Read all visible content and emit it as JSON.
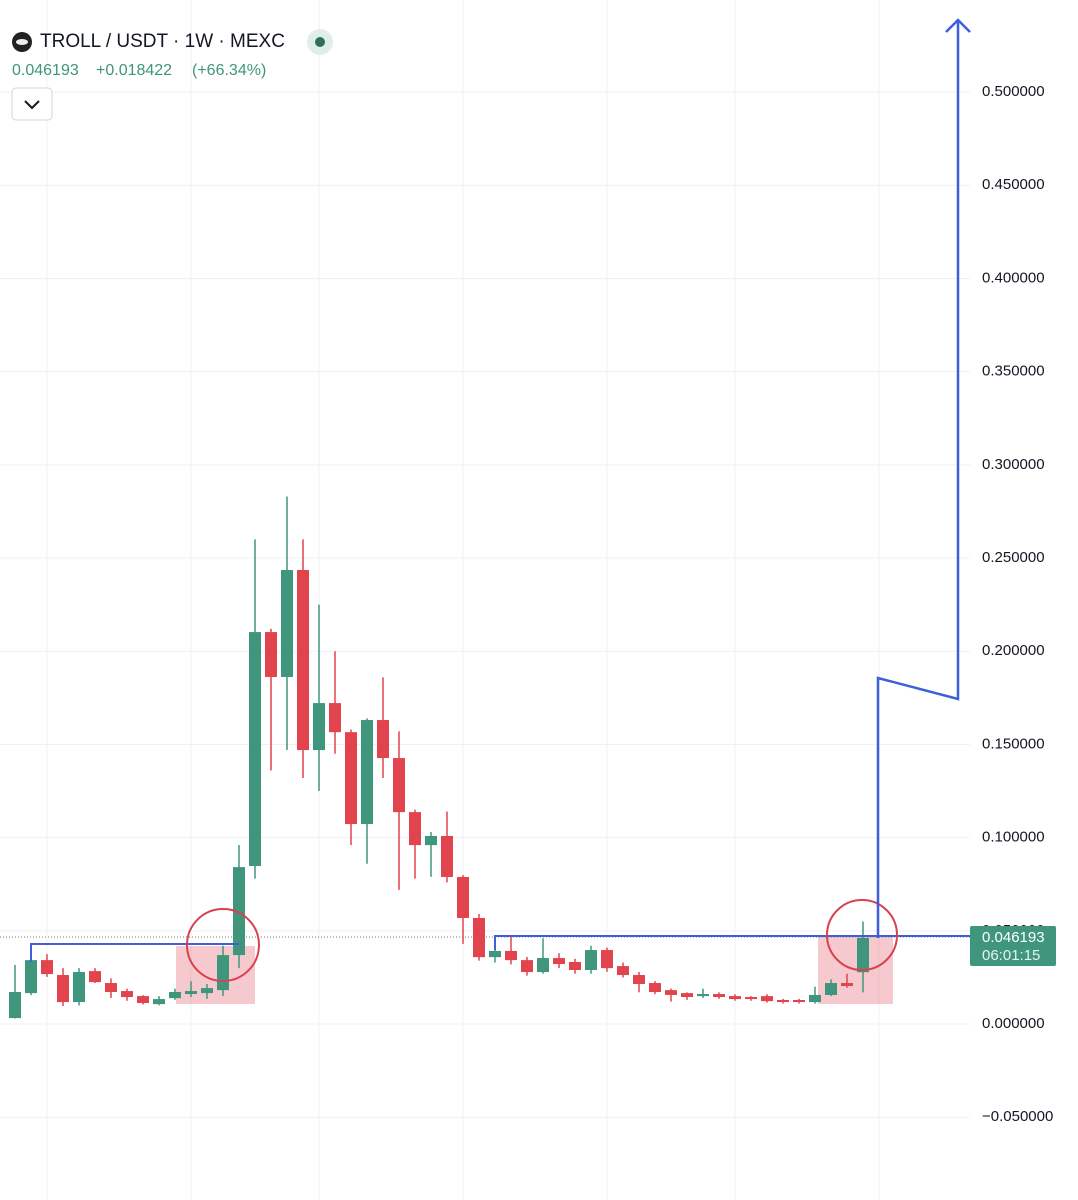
{
  "chart_data": {
    "type": "candlestick",
    "title": "TROLL / USDT · 1W · MEXC",
    "last": "0.046193",
    "change": "+0.018422",
    "change_pct": "(+66.34%)",
    "countdown": "06:01:15",
    "up_color": "#3f967d",
    "down_color": "#e2444d",
    "grid": true,
    "ylim": [
      -0.0944,
      0.5494
    ],
    "yticks": [
      {
        "value": -0.05,
        "label": "−0.050000"
      },
      {
        "value": 0,
        "label": "0.000000"
      },
      {
        "value": 0.05,
        "label": "0.050000"
      },
      {
        "value": 0.1,
        "label": "0.100000"
      },
      {
        "value": 0.15,
        "label": "0.150000"
      },
      {
        "value": 0.2,
        "label": "0.200000"
      },
      {
        "value": 0.25,
        "label": "0.250000"
      },
      {
        "value": 0.3,
        "label": "0.300000"
      },
      {
        "value": 0.35,
        "label": "0.350000"
      },
      {
        "value": 0.4,
        "label": "0.400000"
      },
      {
        "value": 0.45,
        "label": "0.450000"
      },
      {
        "value": 0.5,
        "label": "0.500000"
      }
    ],
    "open": [
      0.0032,
      0.0166,
      0.0343,
      0.0263,
      0.0118,
      0.0284,
      0.022,
      0.0177,
      0.015,
      0.0107,
      0.0139,
      0.0161,
      0.0166,
      0.0182,
      0.037,
      0.0848,
      0.2103,
      0.1862,
      0.2436,
      0.147,
      0.1722,
      0.1566,
      0.1073,
      0.1631,
      0.1427,
      0.1137,
      0.096,
      0.1009,
      0.0789,
      0.0569,
      0.0359,
      0.0392,
      0.0343,
      0.0279,
      0.0354,
      0.0333,
      0.029,
      0.0397,
      0.0311,
      0.0263,
      0.022,
      0.0182,
      0.0166,
      0.015,
      0.0161,
      0.015,
      0.0145,
      0.015,
      0.0129,
      0.0129,
      0.0118,
      0.0156,
      0.022,
      0.0278
    ],
    "high": [
      0.0317,
      0.0365,
      0.0375,
      0.03,
      0.03,
      0.03,
      0.0245,
      0.019,
      0.0155,
      0.015,
      0.019,
      0.023,
      0.0215,
      0.042,
      0.096,
      0.26,
      0.212,
      0.283,
      0.26,
      0.225,
      0.2,
      0.158,
      0.164,
      0.186,
      0.157,
      0.115,
      0.103,
      0.114,
      0.08,
      0.059,
      0.047,
      0.047,
      0.036,
      0.046,
      0.038,
      0.035,
      0.042,
      0.041,
      0.033,
      0.028,
      0.023,
      0.019,
      0.017,
      0.019,
      0.017,
      0.016,
      0.015,
      0.016,
      0.0135,
      0.0135,
      0.02,
      0.024,
      0.027,
      0.055
    ],
    "low": [
      0.003,
      0.0155,
      0.0253,
      0.0096,
      0.01,
      0.022,
      0.014,
      0.0125,
      0.0105,
      0.01,
      0.013,
      0.0145,
      0.0135,
      0.015,
      0.03,
      0.078,
      0.136,
      0.147,
      0.132,
      0.125,
      0.145,
      0.096,
      0.086,
      0.132,
      0.072,
      0.078,
      0.079,
      0.076,
      0.043,
      0.034,
      0.033,
      0.032,
      0.026,
      0.027,
      0.03,
      0.027,
      0.027,
      0.028,
      0.025,
      0.017,
      0.016,
      0.012,
      0.013,
      0.014,
      0.0135,
      0.0125,
      0.0125,
      0.0115,
      0.011,
      0.011,
      0.011,
      0.015,
      0.0195,
      0.017
    ],
    "close": [
      0.0172,
      0.0343,
      0.0268,
      0.0118,
      0.0279,
      0.0225,
      0.0172,
      0.0145,
      0.0113,
      0.0134,
      0.0172,
      0.0177,
      0.0193,
      0.037,
      0.0842,
      0.2103,
      0.1862,
      0.2436,
      0.147,
      0.1722,
      0.1566,
      0.1073,
      0.1631,
      0.1427,
      0.1137,
      0.096,
      0.1009,
      0.0789,
      0.0569,
      0.0359,
      0.0392,
      0.0343,
      0.0279,
      0.0354,
      0.0322,
      0.029,
      0.0397,
      0.03,
      0.0263,
      0.0215,
      0.0172,
      0.0156,
      0.0145,
      0.0161,
      0.0145,
      0.0134,
      0.0134,
      0.0123,
      0.0118,
      0.0118,
      0.0156,
      0.022,
      0.0204,
      0.046193
    ]
  }
}
